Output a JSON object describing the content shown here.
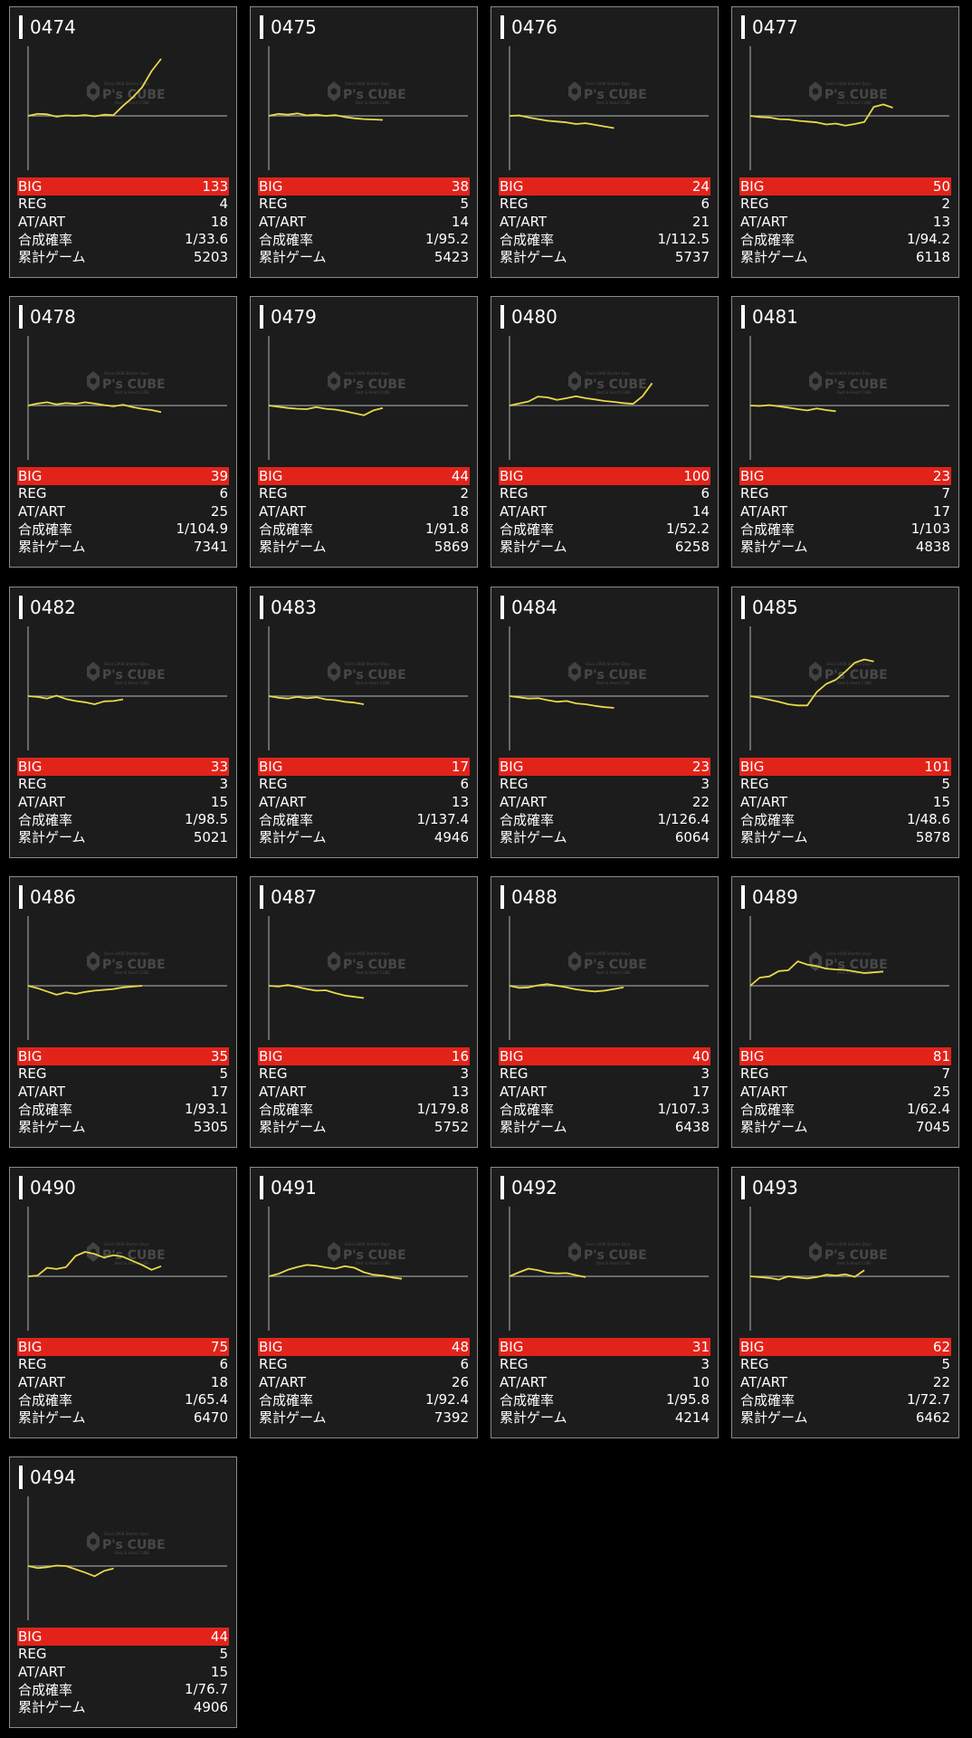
{
  "labels": {
    "big": "BIG",
    "reg": "REG",
    "at": "AT/ART",
    "rate": "合成確率",
    "games": "累計ゲーム"
  },
  "watermark": {
    "small_top": "Since 2008 Shorter Days",
    "brand": "P's CUBE",
    "small_bottom": "Best & Heart CUBE"
  },
  "colors": {
    "card_bg": "#1c1c1c",
    "border": "#8a8a8a",
    "big_bar": "#e2231a",
    "line": "#e8d84a",
    "axis": "#9a9a9a"
  },
  "machines": [
    {
      "id": "0474",
      "big": "133",
      "reg": "4",
      "at": "18",
      "rate": "1/33.6",
      "games": "5203",
      "trend": [
        0,
        0.5,
        0.4,
        -0.2,
        0.1,
        0,
        0.2,
        -0.1,
        0.3,
        0.2,
        2.5,
        4.5,
        7,
        11,
        14
      ]
    },
    {
      "id": "0475",
      "big": "38",
      "reg": "5",
      "at": "14",
      "rate": "1/95.2",
      "games": "5423",
      "trend": [
        0,
        0.5,
        0.3,
        0.6,
        0.1,
        0.3,
        0,
        0.2,
        -0.3,
        -0.6,
        -0.8,
        -0.9,
        -1
      ]
    },
    {
      "id": "0476",
      "big": "24",
      "reg": "6",
      "at": "21",
      "rate": "1/112.5",
      "games": "5737",
      "trend": [
        0,
        0.1,
        -0.4,
        -0.8,
        -1.2,
        -1.4,
        -1.6,
        -2,
        -1.8,
        -2.2,
        -2.6,
        -3
      ]
    },
    {
      "id": "0477",
      "big": "50",
      "reg": "2",
      "at": "13",
      "rate": "1/94.2",
      "games": "6118",
      "trend": [
        0,
        -0.3,
        -0.4,
        -0.8,
        -0.9,
        -1.2,
        -1.4,
        -1.6,
        -2.1,
        -1.9,
        -2.4,
        -2,
        -1.5,
        2.2,
        2.8,
        2
      ]
    },
    {
      "id": "0478",
      "big": "39",
      "reg": "6",
      "at": "25",
      "rate": "1/104.9",
      "games": "7341",
      "trend": [
        0,
        0.5,
        0.8,
        0.3,
        0.6,
        0.4,
        0.8,
        0.5,
        0.1,
        -0.2,
        0.2,
        -0.4,
        -0.8,
        -1.1,
        -1.6
      ]
    },
    {
      "id": "0479",
      "big": "44",
      "reg": "2",
      "at": "18",
      "rate": "1/91.8",
      "games": "5869",
      "trend": [
        0,
        -0.3,
        -0.6,
        -0.8,
        -0.9,
        -0.4,
        -0.8,
        -1,
        -1.4,
        -1.9,
        -2.4,
        -1.2,
        -0.6
      ]
    },
    {
      "id": "0480",
      "big": "100",
      "reg": "6",
      "at": "14",
      "rate": "1/52.2",
      "games": "6258",
      "trend": [
        0,
        0.5,
        1,
        2.2,
        2,
        1.4,
        1.8,
        2.3,
        1.8,
        1.5,
        1.1,
        0.9,
        0.6,
        0.4,
        2.3,
        5.5
      ]
    },
    {
      "id": "0481",
      "big": "23",
      "reg": "7",
      "at": "17",
      "rate": "1/103",
      "games": "4838",
      "trend": [
        0,
        -0.1,
        0.1,
        -0.2,
        -0.5,
        -0.9,
        -1.2,
        -0.7,
        -1.1,
        -1.4
      ]
    },
    {
      "id": "0482",
      "big": "33",
      "reg": "3",
      "at": "15",
      "rate": "1/98.5",
      "games": "5021",
      "trend": [
        0,
        -0.2,
        -0.6,
        0.1,
        -0.7,
        -1.2,
        -1.5,
        -2,
        -1.3,
        -1.2,
        -0.8
      ]
    },
    {
      "id": "0483",
      "big": "17",
      "reg": "6",
      "at": "13",
      "rate": "1/137.4",
      "games": "4946",
      "trend": [
        0,
        -0.4,
        -0.6,
        -0.2,
        -0.5,
        -0.3,
        -0.8,
        -1,
        -1.4,
        -1.6,
        -2
      ]
    },
    {
      "id": "0484",
      "big": "23",
      "reg": "3",
      "at": "22",
      "rate": "1/126.4",
      "games": "6064",
      "trend": [
        0,
        -0.3,
        -0.6,
        -0.5,
        -1,
        -1.4,
        -1.2,
        -1.8,
        -2,
        -2.4,
        -2.7,
        -2.9
      ]
    },
    {
      "id": "0485",
      "big": "101",
      "reg": "5",
      "at": "15",
      "rate": "1/48.6",
      "games": "5878",
      "trend": [
        0,
        -0.4,
        -0.9,
        -1.4,
        -2,
        -2.3,
        -2.3,
        1,
        3,
        4,
        6,
        8.2,
        9,
        8.5
      ]
    },
    {
      "id": "0486",
      "big": "35",
      "reg": "5",
      "at": "17",
      "rate": "1/93.1",
      "games": "5305",
      "trend": [
        0,
        -0.6,
        -1.4,
        -2.2,
        -1.6,
        -2,
        -1.5,
        -1.2,
        -1,
        -0.8,
        -0.4,
        -0.2,
        0
      ]
    },
    {
      "id": "0487",
      "big": "16",
      "reg": "3",
      "at": "13",
      "rate": "1/179.8",
      "games": "5752",
      "trend": [
        0,
        -0.2,
        0.2,
        -0.3,
        -0.8,
        -1.2,
        -1.1,
        -1.8,
        -2.4,
        -2.7,
        -3
      ]
    },
    {
      "id": "0488",
      "big": "40",
      "reg": "3",
      "at": "17",
      "rate": "1/107.3",
      "games": "6438",
      "trend": [
        0,
        -0.5,
        -0.4,
        0.1,
        0.4,
        0,
        -0.4,
        -0.9,
        -1.2,
        -1.4,
        -1.2,
        -0.8,
        -0.4
      ]
    },
    {
      "id": "0489",
      "big": "81",
      "reg": "7",
      "at": "25",
      "rate": "1/62.4",
      "games": "7045",
      "trend": [
        0,
        2,
        2.3,
        3.6,
        3.8,
        6,
        5.2,
        4.8,
        4.2,
        4,
        3.9,
        3.5,
        3.1,
        3.3,
        3.5
      ]
    },
    {
      "id": "0490",
      "big": "75",
      "reg": "6",
      "at": "18",
      "rate": "1/65.4",
      "games": "6470",
      "trend": [
        0,
        0.2,
        2.1,
        1.8,
        2.3,
        5,
        6,
        5.5,
        4.6,
        5.2,
        4.8,
        3.8,
        2.8,
        1.6,
        2.5
      ]
    },
    {
      "id": "0491",
      "big": "48",
      "reg": "6",
      "at": "26",
      "rate": "1/92.4",
      "games": "7392",
      "trend": [
        0,
        0.6,
        1.6,
        2.3,
        2.8,
        2.6,
        2.2,
        1.9,
        2.5,
        2.1,
        1,
        0.4,
        0.2,
        -0.3,
        -0.6
      ]
    },
    {
      "id": "0492",
      "big": "31",
      "reg": "3",
      "at": "10",
      "rate": "1/95.8",
      "games": "4214",
      "trend": [
        0,
        1,
        1.9,
        1.5,
        0.9,
        0.7,
        0.8,
        0.3,
        -0.2
      ]
    },
    {
      "id": "0493",
      "big": "62",
      "reg": "5",
      "at": "22",
      "rate": "1/72.7",
      "games": "6462",
      "trend": [
        0,
        -0.2,
        -0.4,
        -0.8,
        0,
        -0.3,
        -0.5,
        -0.2,
        0.4,
        0.2,
        0.5,
        -0.1,
        1.5
      ]
    },
    {
      "id": "0494",
      "big": "44",
      "reg": "5",
      "at": "15",
      "rate": "1/76.7",
      "games": "4906",
      "trend": [
        0,
        -0.5,
        -0.3,
        0.1,
        0,
        -0.8,
        -1.6,
        -2.5,
        -1.2,
        -0.6
      ]
    }
  ]
}
